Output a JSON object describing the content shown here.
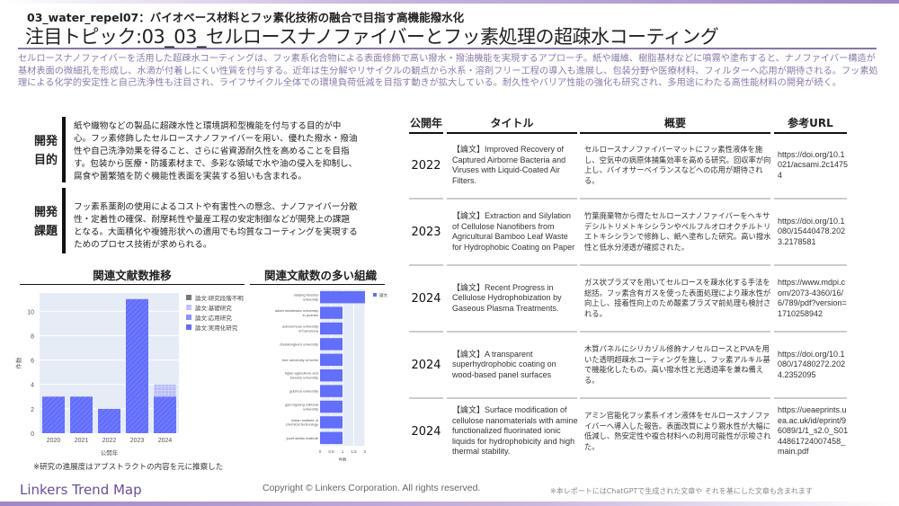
{
  "header": {
    "subtitle": "03_water_repel07：バイオベース材料とフッ素化技術の融合で目指す高機能撥水化",
    "title": "注目トピック:03_03_セルロースナノファイバーとフッ素処理の超疎水コーティング",
    "intro": "セルロースナノファイバーを活用した超疎水コーティングは、フッ素系化合物による表面修飾で高い撥水・撥油機能を実現するアプローチ。紙や繊維、樹脂基材などに噴霧や塗布すると、ナノファイバー構造が基材表面の微細孔を形成し、水滴が付着しにくい性質を付与する。近年は生分解やリサイクルの観点から水系・溶剤フリー工程の導入も進展し、包装分野や医療材料、フィルターへ応用が期待される。フッ素処理による化学的安定性と自己洗浄性も注目され、ライフサイクル全体での環境負荷低減を目指す動きが拡大している。耐久性やバリア性能の強化も研究され、多用途にわたる高性能材料の開発が続く。"
  },
  "purpose": {
    "label": "開発目的",
    "text": "紙や織物などの製品に超疎水性と環境調和型機能を付与する目的が中心。フッ素修飾したセルロースナノファイバーを用い、優れた撥水・撥油性や自己洗浄効果を得ること、さらに省資源耐久性を高めることを目指す。包装から医療・防護素材まで、多彩な領域で水や油の侵入を抑制し、腐食や菌繁殖を防ぐ機能性表面を実装する狙いも含まれる。"
  },
  "issues": {
    "label": "開発課題",
    "text": "フッ素系薬剤の使用によるコストや有害性への懸念、ナノファイバー分散性・定着性の確保、耐摩耗性や量産工程の安定制御などが開発上の課題となる。大面積化や複雑形状への適用でも均質なコーティングを実現するためのプロセス技術が求められる。"
  },
  "charts_headings": {
    "trend": "関連文献数推移",
    "orgs": "関連文献数の多い組織"
  },
  "note": "※研究の進展度はアブストラクトの内容を元に推察した",
  "chart_data": [
    {
      "type": "bar",
      "stacked": true,
      "xlabel": "公開年",
      "ylabel": "件数",
      "ylim": [
        0,
        11.5
      ],
      "yticks": [
        0,
        2,
        4,
        6,
        8,
        10
      ],
      "categories": [
        "2020",
        "2021",
        "2022",
        "2023",
        "2024"
      ],
      "series": [
        {
          "name": "論文:研究段階不明",
          "color": "#777777",
          "values": [
            0,
            0,
            0,
            0,
            0
          ]
        },
        {
          "name": "論文:基礎研究",
          "color": "#b8bdf8",
          "values": [
            0,
            0,
            0,
            0,
            1
          ]
        },
        {
          "name": "論文:応用研究",
          "color": "#8e95f3",
          "values": [
            0,
            0,
            0,
            0,
            0
          ]
        },
        {
          "name": "論文:実用化研究",
          "color": "#636efa",
          "values": [
            3,
            3,
            2,
            11,
            3
          ]
        }
      ],
      "legend": "right",
      "grid": true
    },
    {
      "type": "bar",
      "orientation": "horizontal",
      "xlabel": "件数",
      "xlim": [
        0,
        2
      ],
      "xticks": [
        "0",
        "0.5",
        "1",
        "1.5",
        "2"
      ],
      "categories": [
        "nanjing forestry university",
        "adam mickiewicz university in poznan",
        "autonomous university of barcelona",
        "chulalongkorn university",
        "free university of berlin",
        "fujian agriculture and forestry university",
        "guizhou university",
        "gyeongsang national university",
        "indian institute of chemical technology",
        "jozef stefan institute"
      ],
      "series": [
        {
          "name": "論文",
          "color": "#636efa",
          "values": [
            2,
            1,
            1,
            1,
            1,
            1,
            1,
            1,
            1,
            1
          ]
        }
      ],
      "legend": "right",
      "grid": true
    }
  ],
  "table": {
    "headers": [
      "公開年",
      "タイトル",
      "概要",
      "参考URL"
    ],
    "rows": [
      {
        "year": "2022",
        "title": "【論文】Improved Recovery of Captured Airborne Bacteria and Viruses with Liquid-Coated Air Filters.",
        "summary": "セルロースナノファイバーマットにフッ素性液体を施し、空気中の病原体捕集効率を高める研究。回収率が向上し、バイオサーベイランスなどへの応用が期待される。",
        "url": "https://doi.org/10.1021/acsami.2c14754"
      },
      {
        "year": "2023",
        "title": "【論文】Extraction and Silylation of Cellulose Nanofibers from Agricultural Bamboo Leaf Waste for Hydrophobic Coating on Paper",
        "summary": "竹葉廃棄物から得たセルロースナノファイバーをヘキサデシルトリメトキシシランやペルフルオロオクチルトリエトキシシランで修飾し、紙へ塗布した研究。高い撥水性と低水分浸透が確認された。",
        "url": "https://doi.org/10.1080/15440478.2023.2178581"
      },
      {
        "year": "2024",
        "title": "【論文】Recent Progress in Cellulose Hydrophobization by Gaseous Plasma Treatments.",
        "summary": "ガス状プラズマを用いてセルロースを疎水化する手法を総括。フッ素含有ガスを使った表面処理により疎水性が向上し、接着性向上のため酸素プラズマ前処理も検討される。",
        "url": "https://www.mdpi.com/2073-4360/16/6/789/pdf?version=1710258942"
      },
      {
        "year": "2024",
        "title": "【論文】A transparent superhydrophobic coating on wood-based panel surfaces",
        "summary": "木質パネルにシリカゾル修飾ナノセルロースとPVAを用いた透明超疎水コーティングを施し、フッ素アルキル基で機能化したもの。高い撥水性と光透過率を兼ね備える。",
        "url": "https://doi.org/10.1080/17480272.2024.2352095"
      },
      {
        "year": "2024",
        "title": "【論文】Surface modification of cellulose nanomaterials with amine functionalized fluorinated ionic liquids for hydrophobicity and high thermal stability.",
        "summary": "アミン官能化フッ素系イオン液体をセルロースナノファイバーへ導入した報告。表面改質により親水性が大幅に低減し、熱安定性や複合材料への利用可能性が示唆された。",
        "url": "https://ueaeprints.uea.ac.uk/id/eprint/96089/1/1_s2.0_S0144861724007458_main.pdf"
      }
    ]
  },
  "footer": {
    "brand": "Linkers Trend Map",
    "copyright": "Copyright © Linkers Corporation. All rights reserved.",
    "note": "※本レポートにはChatGPTで生成された文章や それを基にした文章も含まれます"
  }
}
